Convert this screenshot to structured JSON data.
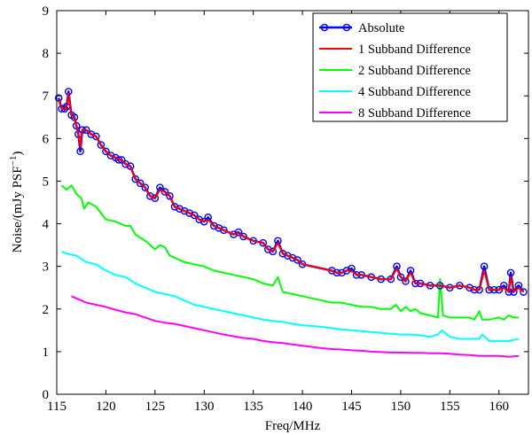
{
  "chart_data": {
    "type": "line",
    "xlabel": "Freq/MHz",
    "ylabel": "Noise/(mJy PSF",
    "ylabel_sup": "−1",
    "ylabel_close": ")",
    "xlim": [
      115,
      163
    ],
    "ylim": [
      0,
      9
    ],
    "x_ticks": [
      115,
      120,
      125,
      130,
      135,
      140,
      145,
      150,
      155,
      160
    ],
    "y_ticks": [
      0,
      1,
      2,
      3,
      4,
      5,
      6,
      7,
      8,
      9
    ],
    "grid": false,
    "legend_position": "top-right",
    "series": [
      {
        "name": "Absolute",
        "color": "#0000ff",
        "markers": true,
        "x": [
          115.2,
          115.5,
          115.8,
          116.0,
          116.2,
          116.5,
          116.8,
          117.0,
          117.2,
          117.4,
          117.6,
          118.0,
          118.5,
          119.0,
          119.5,
          120.0,
          120.5,
          121.0,
          121.3,
          121.6,
          122.0,
          122.5,
          123.0,
          123.5,
          124.0,
          124.5,
          125.0,
          125.5,
          126.0,
          126.5,
          127.0,
          127.5,
          128.0,
          128.5,
          129.0,
          129.5,
          130.0,
          130.4,
          131.0,
          131.5,
          132.0,
          133.0,
          133.5,
          134.0,
          135.0,
          136.0,
          136.5,
          137.0,
          137.5,
          138.0,
          138.5,
          139.0,
          139.5,
          140.0,
          143.0,
          143.5,
          144.0,
          144.5,
          145.0,
          145.5,
          146.0,
          147.0,
          148.0,
          149.0,
          149.6,
          150.0,
          150.5,
          151.0,
          151.5,
          152.0,
          153.0,
          154.0,
          155.0,
          156.0,
          157.0,
          157.5,
          158.0,
          158.5,
          159.0,
          159.5,
          160.0,
          160.5,
          161.0,
          161.2,
          161.5,
          162.0,
          162.5
        ],
        "values": [
          6.95,
          6.7,
          6.7,
          6.75,
          7.1,
          6.55,
          6.5,
          6.3,
          6.1,
          5.7,
          6.2,
          6.2,
          6.1,
          6.05,
          5.85,
          5.7,
          5.6,
          5.55,
          5.5,
          5.5,
          5.4,
          5.35,
          5.05,
          4.95,
          4.85,
          4.65,
          4.6,
          4.85,
          4.75,
          4.65,
          4.4,
          4.35,
          4.3,
          4.25,
          4.2,
          4.1,
          4.05,
          4.15,
          3.95,
          3.9,
          3.85,
          3.75,
          3.8,
          3.7,
          3.6,
          3.55,
          3.4,
          3.35,
          3.6,
          3.3,
          3.25,
          3.2,
          3.15,
          3.05,
          2.9,
          2.85,
          2.85,
          2.9,
          2.95,
          2.8,
          2.8,
          2.75,
          2.7,
          2.7,
          3.0,
          2.75,
          2.65,
          2.9,
          2.6,
          2.6,
          2.55,
          2.55,
          2.5,
          2.55,
          2.5,
          2.45,
          2.45,
          3.0,
          2.45,
          2.45,
          2.45,
          2.55,
          2.4,
          2.85,
          2.4,
          2.55,
          2.4
        ]
      },
      {
        "name": "1 Subband Difference",
        "color": "#ff0000",
        "markers": false,
        "x": [
          115.2,
          115.5,
          115.8,
          116.0,
          116.2,
          116.5,
          116.8,
          117.0,
          117.2,
          117.4,
          117.6,
          118.0,
          118.5,
          119.0,
          119.5,
          120.0,
          120.5,
          121.0,
          121.3,
          121.6,
          122.0,
          122.5,
          123.0,
          123.5,
          124.0,
          124.5,
          125.0,
          125.5,
          126.0,
          126.5,
          127.0,
          127.5,
          128.0,
          128.5,
          129.0,
          129.5,
          130.0,
          130.4,
          131.0,
          131.5,
          132.0,
          133.0,
          133.5,
          134.0,
          135.0,
          136.0,
          136.5,
          137.0,
          137.5,
          138.0,
          138.5,
          139.0,
          139.5,
          140.0,
          143.0,
          143.5,
          144.0,
          144.5,
          145.0,
          145.5,
          146.0,
          147.0,
          148.0,
          149.0,
          149.6,
          150.0,
          150.5,
          151.0,
          151.5,
          152.0,
          153.0,
          154.0,
          155.0,
          156.0,
          157.0,
          157.5,
          158.0,
          158.5,
          159.0,
          159.5,
          160.0,
          160.5,
          161.0,
          161.2,
          161.5,
          162.0,
          162.5
        ],
        "values": [
          6.9,
          6.7,
          6.7,
          6.7,
          7.05,
          6.55,
          6.5,
          6.3,
          6.1,
          5.8,
          6.2,
          6.2,
          6.1,
          6.05,
          5.85,
          5.7,
          5.6,
          5.55,
          5.5,
          5.5,
          5.4,
          5.35,
          5.05,
          4.95,
          4.85,
          4.65,
          4.6,
          4.8,
          4.75,
          4.65,
          4.4,
          4.35,
          4.3,
          4.25,
          4.2,
          4.1,
          4.05,
          4.1,
          3.95,
          3.9,
          3.85,
          3.75,
          3.78,
          3.7,
          3.6,
          3.55,
          3.4,
          3.35,
          3.55,
          3.3,
          3.25,
          3.2,
          3.15,
          3.05,
          2.9,
          2.85,
          2.85,
          2.9,
          2.9,
          2.8,
          2.8,
          2.75,
          2.7,
          2.7,
          2.95,
          2.75,
          2.65,
          2.85,
          2.6,
          2.6,
          2.55,
          2.55,
          2.5,
          2.55,
          2.5,
          2.45,
          2.45,
          2.9,
          2.45,
          2.45,
          2.45,
          2.5,
          2.4,
          2.75,
          2.4,
          2.5,
          2.4
        ]
      },
      {
        "name": "2 Subband Difference",
        "color": "#00ff00",
        "markers": false,
        "x": [
          115.5,
          116.0,
          116.5,
          117.0,
          117.5,
          117.8,
          118.2,
          119.0,
          119.5,
          120.0,
          121.0,
          122.0,
          122.5,
          123.0,
          124.0,
          125.0,
          125.5,
          126.0,
          126.5,
          127.0,
          128.0,
          129.0,
          130.0,
          131.0,
          132.0,
          133.0,
          134.0,
          135.0,
          136.0,
          137.0,
          137.5,
          138.0,
          139.0,
          140.0,
          141.0,
          142.0,
          143.0,
          144.0,
          145.0,
          146.0,
          147.0,
          148.0,
          149.0,
          149.5,
          150.0,
          150.5,
          151.0,
          151.5,
          152.0,
          153.0,
          153.8,
          154.0,
          154.3,
          155.0,
          156.0,
          157.0,
          157.5,
          158.0,
          158.3,
          159.0,
          160.0,
          160.5,
          161.0,
          161.5,
          162.0
        ],
        "values": [
          4.9,
          4.8,
          4.9,
          4.7,
          4.6,
          4.35,
          4.5,
          4.4,
          4.25,
          4.1,
          4.05,
          3.95,
          3.95,
          3.75,
          3.6,
          3.4,
          3.5,
          3.45,
          3.25,
          3.2,
          3.1,
          3.05,
          3.0,
          2.9,
          2.85,
          2.8,
          2.75,
          2.7,
          2.6,
          2.55,
          2.75,
          2.4,
          2.35,
          2.3,
          2.25,
          2.2,
          2.15,
          2.15,
          2.1,
          2.05,
          2.05,
          2.0,
          2.0,
          2.1,
          1.95,
          2.05,
          1.95,
          2.0,
          1.9,
          1.85,
          1.8,
          2.7,
          1.85,
          1.8,
          1.8,
          1.8,
          1.75,
          1.95,
          1.75,
          1.75,
          1.8,
          1.75,
          1.85,
          1.8,
          1.8
        ]
      },
      {
        "name": "4 Subband Difference",
        "color": "#00ffff",
        "markers": false,
        "x": [
          115.5,
          116.0,
          117.0,
          118.0,
          119.0,
          120.0,
          121.0,
          122.0,
          123.0,
          124.0,
          125.0,
          126.0,
          127.0,
          128.0,
          129.0,
          130.0,
          131.0,
          132.0,
          133.0,
          134.0,
          135.0,
          136.0,
          137.0,
          138.0,
          139.0,
          140.0,
          141.0,
          142.0,
          143.0,
          144.0,
          145.0,
          146.0,
          147.0,
          148.0,
          149.0,
          150.0,
          151.0,
          152.0,
          153.0,
          153.8,
          154.2,
          155.0,
          156.0,
          157.0,
          158.0,
          158.3,
          159.0,
          160.0,
          161.0,
          162.0
        ],
        "values": [
          3.35,
          3.3,
          3.25,
          3.1,
          3.05,
          2.9,
          2.8,
          2.75,
          2.6,
          2.5,
          2.4,
          2.35,
          2.3,
          2.2,
          2.1,
          2.05,
          2.0,
          1.95,
          1.9,
          1.85,
          1.8,
          1.75,
          1.72,
          1.7,
          1.65,
          1.62,
          1.6,
          1.58,
          1.55,
          1.52,
          1.5,
          1.48,
          1.46,
          1.44,
          1.42,
          1.4,
          1.4,
          1.38,
          1.35,
          1.4,
          1.5,
          1.35,
          1.3,
          1.3,
          1.3,
          1.4,
          1.25,
          1.25,
          1.25,
          1.3
        ]
      },
      {
        "name": "8 Subband Difference",
        "color": "#ff00ff",
        "markers": false,
        "x": [
          116.5,
          117.0,
          118.0,
          119.0,
          120.0,
          121.0,
          122.0,
          123.0,
          124.0,
          125.0,
          126.0,
          127.0,
          128.0,
          129.0,
          130.0,
          131.0,
          132.0,
          133.0,
          134.0,
          135.0,
          136.0,
          137.0,
          138.0,
          139.0,
          140.0,
          141.0,
          142.0,
          143.0,
          144.0,
          145.0,
          146.0,
          147.0,
          148.0,
          149.0,
          150.0,
          151.0,
          152.0,
          153.0,
          154.0,
          155.0,
          156.0,
          157.0,
          158.0,
          159.0,
          160.0,
          161.0,
          162.0
        ],
        "values": [
          2.3,
          2.25,
          2.15,
          2.1,
          2.05,
          1.98,
          1.92,
          1.88,
          1.8,
          1.72,
          1.68,
          1.65,
          1.6,
          1.55,
          1.5,
          1.45,
          1.4,
          1.36,
          1.32,
          1.3,
          1.25,
          1.22,
          1.2,
          1.17,
          1.14,
          1.11,
          1.08,
          1.06,
          1.05,
          1.03,
          1.02,
          1.0,
          0.99,
          0.98,
          0.98,
          0.97,
          0.97,
          0.96,
          0.96,
          0.95,
          0.93,
          0.92,
          0.9,
          0.9,
          0.9,
          0.88,
          0.9
        ]
      }
    ]
  }
}
